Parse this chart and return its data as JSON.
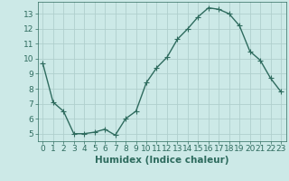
{
  "x": [
    0,
    1,
    2,
    3,
    4,
    5,
    6,
    7,
    8,
    9,
    10,
    11,
    12,
    13,
    14,
    15,
    16,
    17,
    18,
    19,
    20,
    21,
    22,
    23
  ],
  "y": [
    9.7,
    7.1,
    6.5,
    5.0,
    5.0,
    5.1,
    5.3,
    4.9,
    6.0,
    6.5,
    8.4,
    9.4,
    10.1,
    11.3,
    12.0,
    12.8,
    13.4,
    13.3,
    13.0,
    12.2,
    10.5,
    9.9,
    8.7,
    7.8
  ],
  "line_color": "#2e6b5e",
  "marker": "+",
  "marker_size": 4,
  "bg_color": "#cce9e7",
  "grid_color": "#b0cfcd",
  "xlabel": "Humidex (Indice chaleur)",
  "xlim": [
    -0.5,
    23.5
  ],
  "ylim": [
    4.5,
    13.8
  ],
  "yticks": [
    5,
    6,
    7,
    8,
    9,
    10,
    11,
    12,
    13
  ],
  "xticks": [
    0,
    1,
    2,
    3,
    4,
    5,
    6,
    7,
    8,
    9,
    10,
    11,
    12,
    13,
    14,
    15,
    16,
    17,
    18,
    19,
    20,
    21,
    22,
    23
  ],
  "tick_label_fontsize": 6.5,
  "xlabel_fontsize": 7.5,
  "line_width": 1.0,
  "marker_edge_width": 0.8
}
